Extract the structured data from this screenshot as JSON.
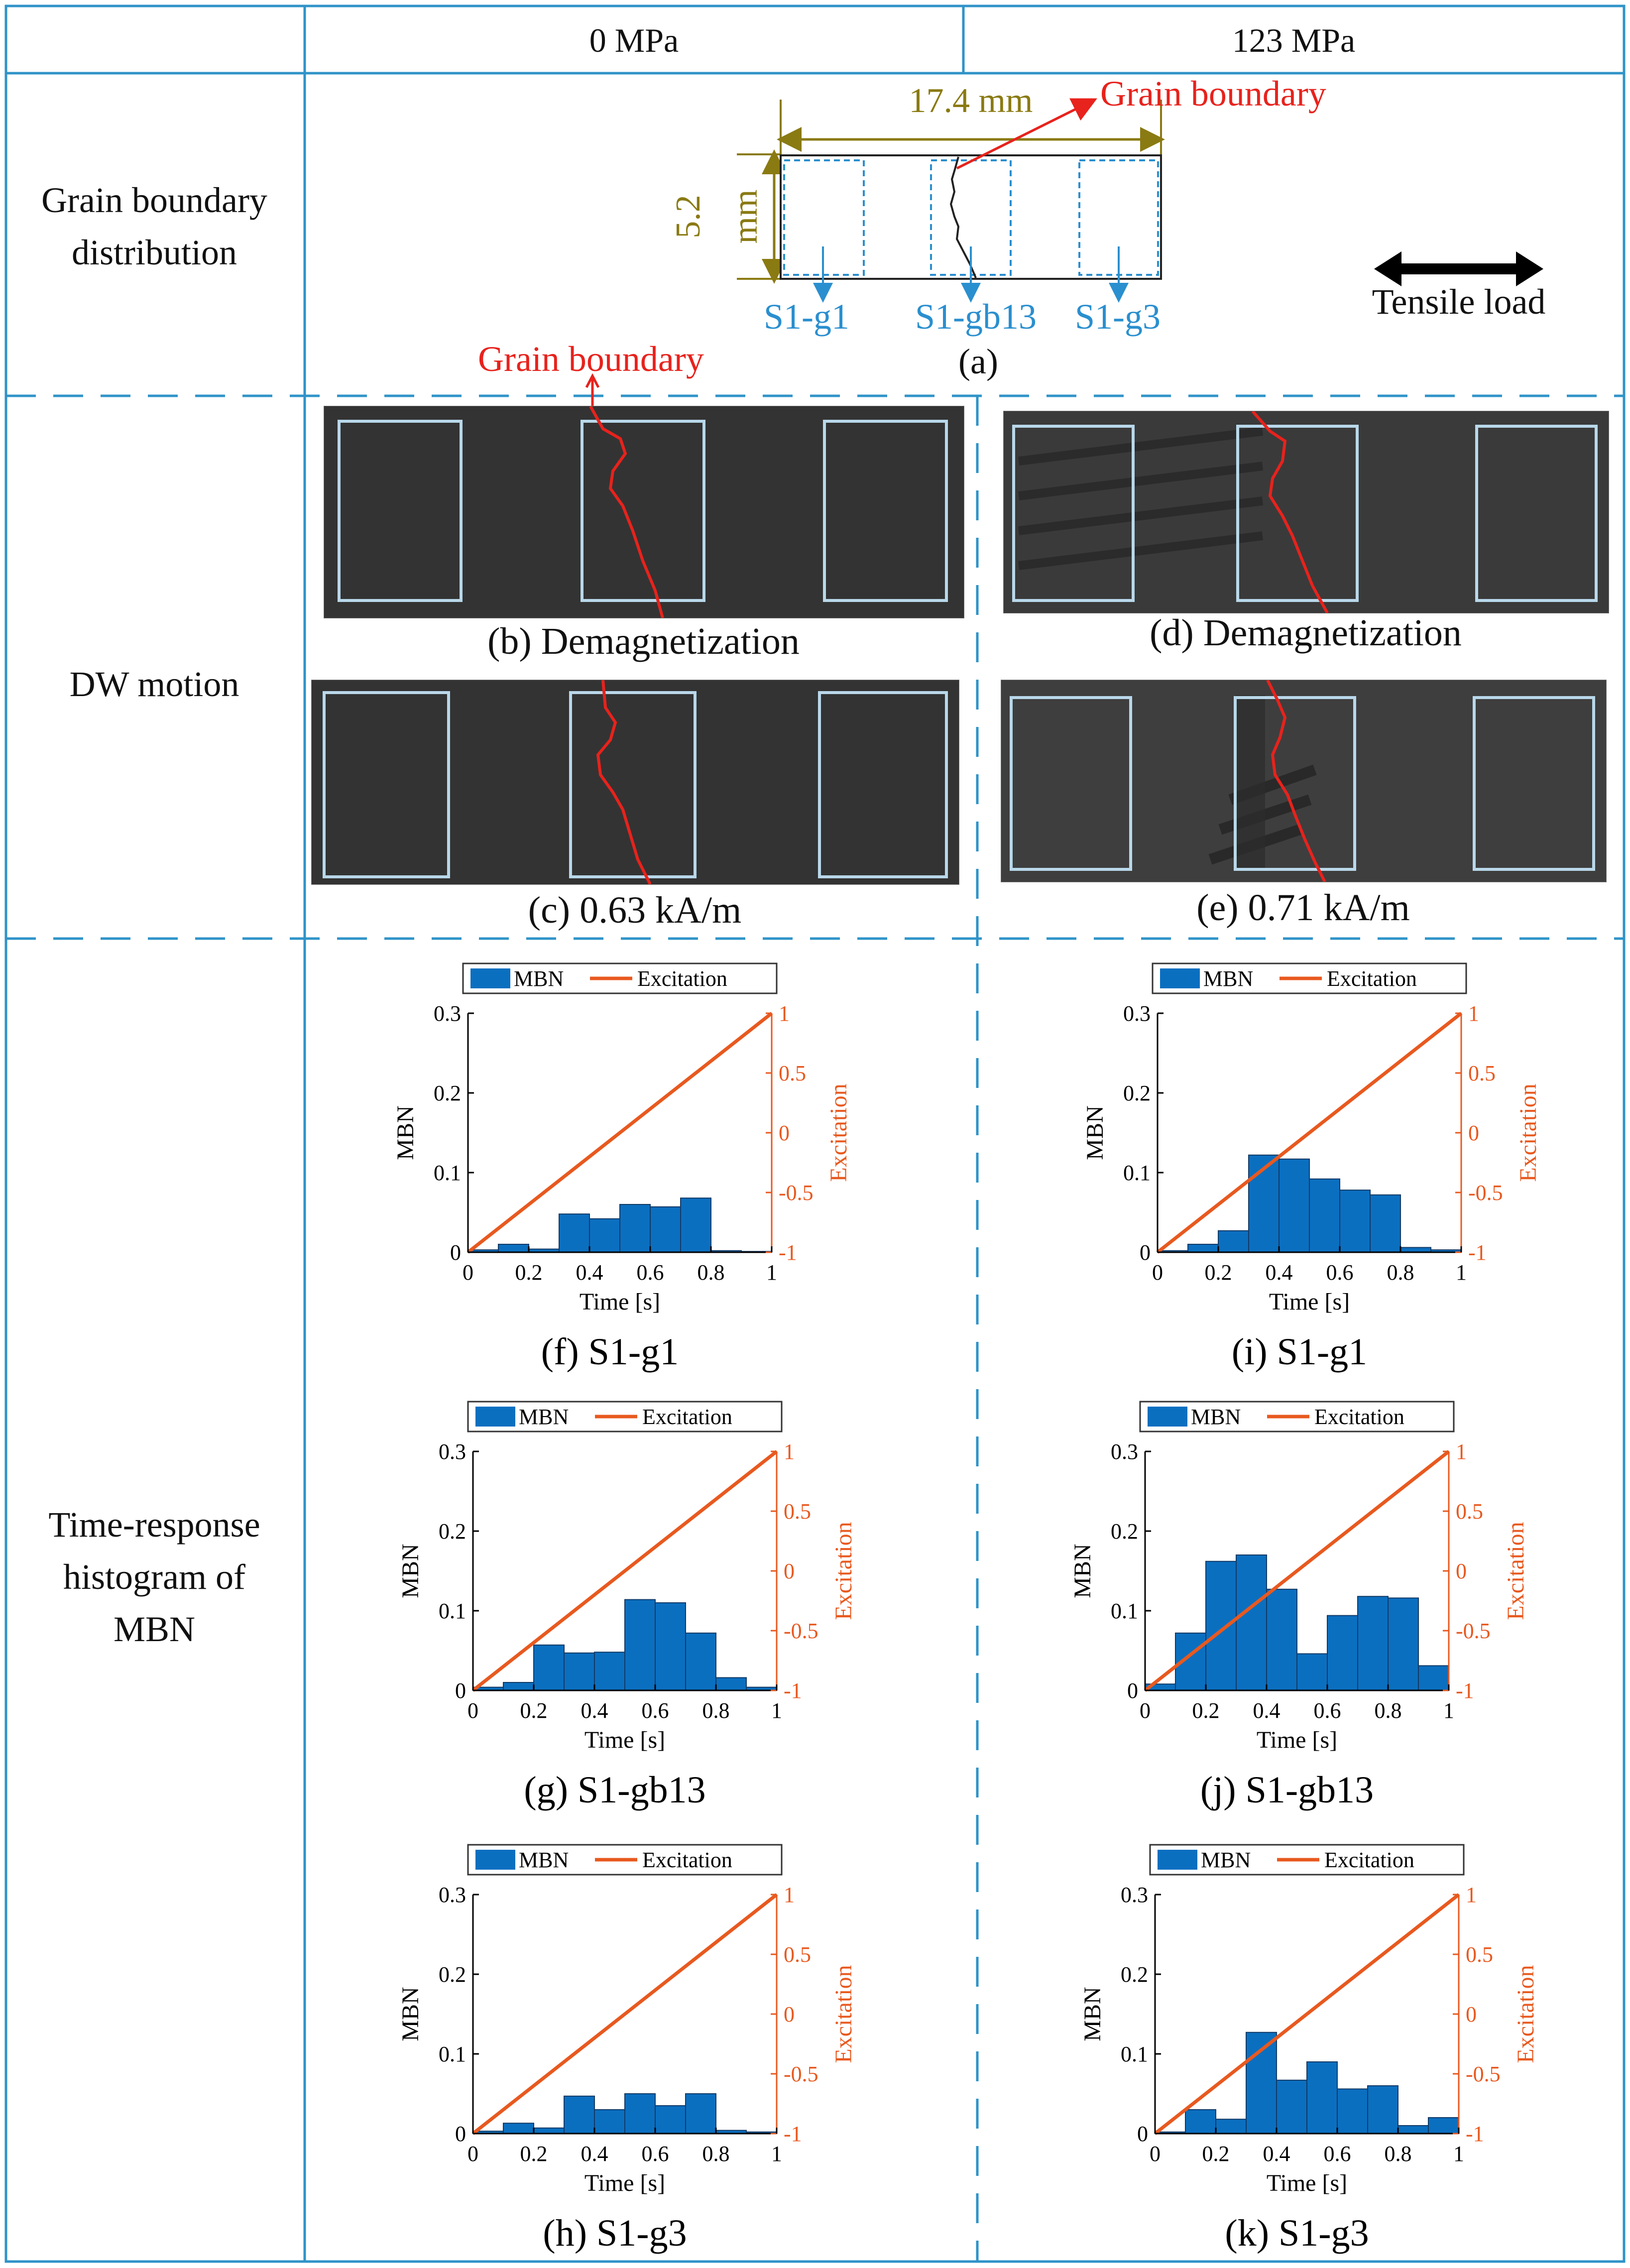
{
  "header": {
    "col1": "0 MPa",
    "col2": "123 MPa"
  },
  "rows": {
    "grain_boundary": "Grain boundary\ndistribution",
    "dw_motion": "DW motion",
    "histogram": "Time-response\nhistogram of\nMBN"
  },
  "schematic": {
    "width_label": "17.4 mm",
    "height_value": "5.2",
    "height_unit": "mm",
    "gb_arrow_label": "Grain boundary",
    "regions": [
      "S1-g1",
      "S1-gb13",
      "S1-g3"
    ],
    "load_label": "Tensile load",
    "caption": "(a)"
  },
  "dw": {
    "gb_label": "Grain boundary",
    "captions": {
      "b": "(b) Demagnetization",
      "c": "(c) 0.63 kA/m",
      "d": "(d) Demagnetization",
      "e": "(e) 0.71 kA/m"
    }
  },
  "colors": {
    "frame": "#2f93c8",
    "bar": "#0b6fc0",
    "line": "#e8591f",
    "gb": "#e8221c",
    "gold": "#8a7a12",
    "region": "#2a8fcf"
  },
  "chart_data": [
    {
      "id": "f",
      "type": "bar",
      "caption": "(f) S1-g1",
      "xlabel": "Time [s]",
      "ylabel": "MBN",
      "y2label": "Excitation",
      "legend": [
        "MBN",
        "Excitation"
      ],
      "xlim": [
        0,
        1
      ],
      "ylim": [
        0,
        0.3
      ],
      "y2lim": [
        -1,
        1
      ],
      "xticks": [
        "0",
        "0.2",
        "0.4",
        "0.6",
        "0.8",
        "1"
      ],
      "yticks": [
        "0",
        "0.1",
        "0.2",
        "0.3"
      ],
      "y2ticks": [
        "-1",
        "-0.5",
        "0",
        "0.5",
        "1"
      ],
      "values": [
        0.003,
        0.01,
        0.004,
        0.048,
        0.042,
        0.06,
        0.057,
        0.068,
        0.002,
        0.001
      ]
    },
    {
      "id": "g",
      "type": "bar",
      "caption": "(g) S1-gb13",
      "xlabel": "Time [s]",
      "ylabel": "MBN",
      "y2label": "Excitation",
      "legend": [
        "MBN",
        "Excitation"
      ],
      "xlim": [
        0,
        1
      ],
      "ylim": [
        0,
        0.3
      ],
      "y2lim": [
        -1,
        1
      ],
      "xticks": [
        "0",
        "0.2",
        "0.4",
        "0.6",
        "0.8",
        "1"
      ],
      "yticks": [
        "0",
        "0.1",
        "0.2",
        "0.3"
      ],
      "y2ticks": [
        "-1",
        "-0.5",
        "0",
        "0.5",
        "1"
      ],
      "values": [
        0.004,
        0.01,
        0.057,
        0.047,
        0.048,
        0.114,
        0.11,
        0.072,
        0.016,
        0.004
      ]
    },
    {
      "id": "h",
      "type": "bar",
      "caption": "(h) S1-g3",
      "xlabel": "Time [s]",
      "ylabel": "MBN",
      "y2label": "Excitation",
      "legend": [
        "MBN",
        "Excitation"
      ],
      "xlim": [
        0,
        1
      ],
      "ylim": [
        0,
        0.3
      ],
      "y2lim": [
        -1,
        1
      ],
      "xticks": [
        "0",
        "0.2",
        "0.4",
        "0.6",
        "0.8",
        "1"
      ],
      "yticks": [
        "0",
        "0.1",
        "0.2",
        "0.3"
      ],
      "y2ticks": [
        "-1",
        "-0.5",
        "0",
        "0.5",
        "1"
      ],
      "values": [
        0.003,
        0.013,
        0.007,
        0.047,
        0.03,
        0.05,
        0.035,
        0.05,
        0.004,
        0.002
      ]
    },
    {
      "id": "i",
      "type": "bar",
      "caption": "(i) S1-g1",
      "xlabel": "Time [s]",
      "ylabel": "MBN",
      "y2label": "Excitation",
      "legend": [
        "MBN",
        "Excitation"
      ],
      "xlim": [
        0,
        1
      ],
      "ylim": [
        0,
        0.3
      ],
      "y2lim": [
        -1,
        1
      ],
      "xticks": [
        "0",
        "0.2",
        "0.4",
        "0.6",
        "0.8",
        "1"
      ],
      "yticks": [
        "0",
        "0.1",
        "0.2",
        "0.3"
      ],
      "y2ticks": [
        "-1",
        "-0.5",
        "0",
        "0.5",
        "1"
      ],
      "values": [
        0.002,
        0.01,
        0.027,
        0.122,
        0.117,
        0.092,
        0.078,
        0.072,
        0.006,
        0.003
      ]
    },
    {
      "id": "j",
      "type": "bar",
      "caption": "(j) S1-gb13",
      "xlabel": "Time [s]",
      "ylabel": "MBN",
      "y2label": "Excitation",
      "legend": [
        "MBN",
        "Excitation"
      ],
      "xlim": [
        0,
        1
      ],
      "ylim": [
        0,
        0.3
      ],
      "y2lim": [
        -1,
        1
      ],
      "xticks": [
        "0",
        "0.2",
        "0.4",
        "0.6",
        "0.8",
        "1"
      ],
      "yticks": [
        "0",
        "0.1",
        "0.2",
        "0.3"
      ],
      "y2ticks": [
        "-1",
        "-0.5",
        "0",
        "0.5",
        "1"
      ],
      "values": [
        0.008,
        0.072,
        0.162,
        0.17,
        0.127,
        0.046,
        0.094,
        0.118,
        0.116,
        0.031
      ]
    },
    {
      "id": "k",
      "type": "bar",
      "caption": "(k) S1-g3",
      "xlabel": "Time [s]",
      "ylabel": "MBN",
      "y2label": "Excitation",
      "legend": [
        "MBN",
        "Excitation"
      ],
      "xlim": [
        0,
        1
      ],
      "ylim": [
        0,
        0.3
      ],
      "y2lim": [
        -1,
        1
      ],
      "xticks": [
        "0",
        "0.2",
        "0.4",
        "0.6",
        "0.8",
        "1"
      ],
      "yticks": [
        "0",
        "0.1",
        "0.2",
        "0.3"
      ],
      "y2ticks": [
        "-1",
        "-0.5",
        "0",
        "0.5",
        "1"
      ],
      "values": [
        0.002,
        0.03,
        0.018,
        0.127,
        0.067,
        0.09,
        0.056,
        0.06,
        0.01,
        0.02
      ]
    }
  ]
}
